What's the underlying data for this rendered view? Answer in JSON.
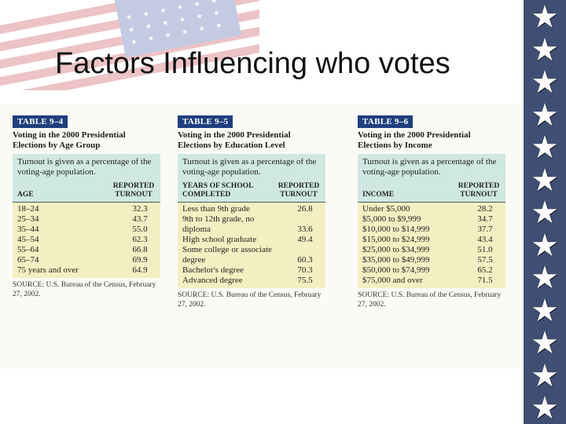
{
  "slide": {
    "title": "Factors Influencing who votes"
  },
  "tables": [
    {
      "tag": "TABLE 9–4",
      "caption": "Voting in the 2000 Presidential Elections by Age Group",
      "note": "Turnout is given as a percentage of the voting-age population.",
      "col_left": "AGE",
      "col_right": "REPORTED TURNOUT",
      "rows": [
        {
          "label": "18–24",
          "value": "32.3"
        },
        {
          "label": "25–34",
          "value": "43.7"
        },
        {
          "label": "35–44",
          "value": "55.0"
        },
        {
          "label": "45–54",
          "value": "62.3"
        },
        {
          "label": "55–64",
          "value": "66.8"
        },
        {
          "label": "65–74",
          "value": "69.9"
        },
        {
          "label": "75 years and over",
          "value": "64.9"
        }
      ],
      "source": "SOURCE: U.S. Bureau of the Census, February 27, 2002."
    },
    {
      "tag": "TABLE 9–5",
      "caption": "Voting in the 2000 Presidential Elections by Education Level",
      "note": "Turnout is given as a percentage of the voting-age population.",
      "col_left": "YEARS OF SCHOOL COMPLETED",
      "col_right": "REPORTED TURNOUT",
      "rows": [
        {
          "label": "Less than 9th grade",
          "value": "26.8"
        },
        {
          "label": "9th to 12th grade, no diploma",
          "value": "33.6"
        },
        {
          "label": "High school graduate",
          "value": "49.4"
        },
        {
          "label": "Some college or associate degree",
          "value": "60.3"
        },
        {
          "label": "Bachelor's degree",
          "value": "70.3"
        },
        {
          "label": "Advanced degree",
          "value": "75.5"
        }
      ],
      "source": "SOURCE: U.S. Bureau of the Census, February 27, 2002."
    },
    {
      "tag": "TABLE 9–6",
      "caption": "Voting in the 2000 Presidential Elections by Income",
      "note": "Turnout is given as a percentage of the voting-age population.",
      "col_left": "INCOME",
      "col_right": "REPORTED TURNOUT",
      "rows": [
        {
          "label": "Under $5,000",
          "value": "28.2"
        },
        {
          "label": "$5,000 to $9,999",
          "value": "34.7"
        },
        {
          "label": "$10,000 to $14,999",
          "value": "37.7"
        },
        {
          "label": "$15,000 to $24,999",
          "value": "43.4"
        },
        {
          "label": "$25,000 to $34,999",
          "value": "51.0"
        },
        {
          "label": "$35,000 to $49,999",
          "value": "57.5"
        },
        {
          "label": "$50,000 to $74,999",
          "value": "65.2"
        },
        {
          "label": "$75,000 and over",
          "value": "71.5"
        }
      ],
      "source": "SOURCE: U.S. Bureau of the Census, February 27, 2002."
    }
  ],
  "decor": {
    "star_icon": "star-icon",
    "star_color": "#ffffff",
    "column_color": "#3f4f73",
    "tag_color": "#1f3f7e",
    "header_color": "#cfe8e1",
    "row_color": "#f4efc2"
  }
}
